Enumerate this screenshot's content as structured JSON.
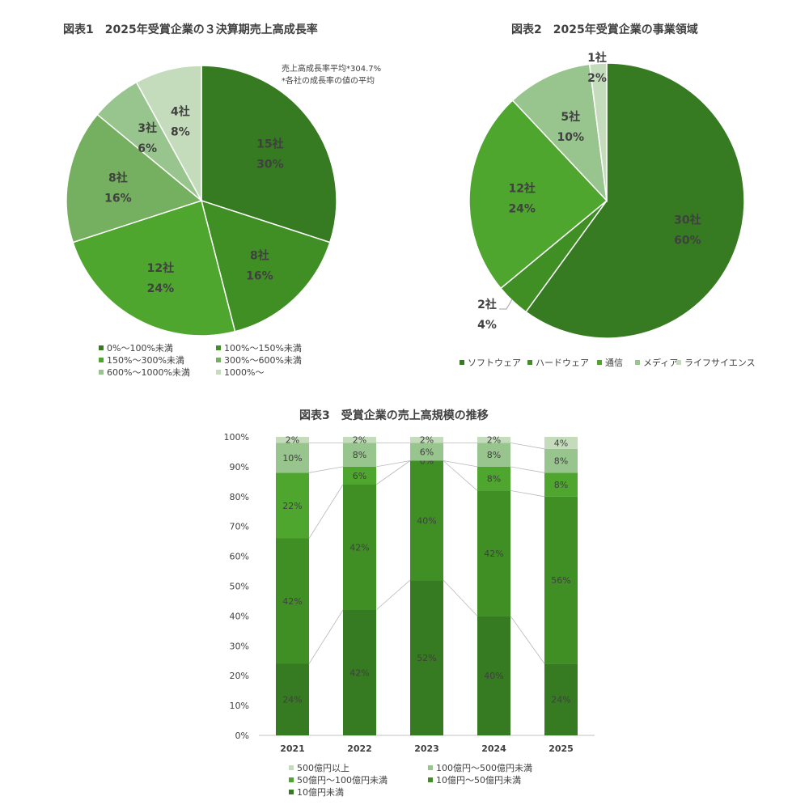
{
  "chart_data": [
    {
      "type": "pie",
      "title": "図表1　2025年受賞企業の３決算期売上高成長率",
      "notes": [
        "売上高成長率平均*304.7%",
        "*各社の成長率の値の平均"
      ],
      "colors": [
        "#367a21",
        "#3f8f25",
        "#4ea62e",
        "#74b05f",
        "#98c48d",
        "#c5dcbc"
      ],
      "slices": [
        {
          "name": "0%～100%未満",
          "count": "15社",
          "pct": "30%",
          "value": 30
        },
        {
          "name": "100%～150%未満",
          "count": "8社",
          "pct": "16%",
          "value": 16
        },
        {
          "name": "150%～300%未満",
          "count": "12社",
          "pct": "24%",
          "value": 24
        },
        {
          "name": "300%～600%未満",
          "count": "8社",
          "pct": "16%",
          "value": 16
        },
        {
          "name": "600%～1000%未満",
          "count": "3社",
          "pct": "6%",
          "value": 6
        },
        {
          "name": "1000%～",
          "count": "4社",
          "pct": "8%",
          "value": 8
        }
      ],
      "legend_position": "bottom"
    },
    {
      "type": "pie",
      "title": "図表2　2025年受賞企業の事業領域",
      "colors": [
        "#367a21",
        "#3f8f25",
        "#4ea62e",
        "#98c48d",
        "#c5dcbc"
      ],
      "slices": [
        {
          "name": "ソフトウェア",
          "count": "30社",
          "pct": "60%",
          "value": 60
        },
        {
          "name": "ハードウェア",
          "count": "2社",
          "pct": "4%",
          "value": 4
        },
        {
          "name": "通信",
          "count": "12社",
          "pct": "24%",
          "value": 24
        },
        {
          "name": "メディア",
          "count": "5社",
          "pct": "10%",
          "value": 10
        },
        {
          "name": "ライフサイエンス",
          "count": "1社",
          "pct": "2%",
          "value": 2
        }
      ],
      "legend_position": "bottom"
    },
    {
      "type": "bar",
      "stacked": true,
      "title": "図表3　受賞企業の売上高規模の推移",
      "categories": [
        "2021",
        "2022",
        "2023",
        "2024",
        "2025"
      ],
      "ylim": [
        0,
        100
      ],
      "yticks": [
        "0%",
        "10%",
        "20%",
        "30%",
        "40%",
        "50%",
        "60%",
        "70%",
        "80%",
        "90%",
        "100%"
      ],
      "series": [
        {
          "name": "10億円未満",
          "color": "#367a21",
          "values": [
            24,
            42,
            52,
            40,
            24
          ]
        },
        {
          "name": "10億円～50億円未満",
          "color": "#3f8f25",
          "values": [
            42,
            42,
            40,
            42,
            56
          ]
        },
        {
          "name": "50億円～100億円未満",
          "color": "#4ea62e",
          "values": [
            22,
            6,
            0,
            8,
            8
          ]
        },
        {
          "name": "100億円～500億円未満",
          "color": "#98c48d",
          "values": [
            10,
            8,
            6,
            8,
            8
          ]
        },
        {
          "name": "500億円以上",
          "color": "#c5dcbc",
          "values": [
            2,
            2,
            2,
            2,
            4
          ]
        }
      ],
      "legend": [
        "500億円以上",
        "100億円～500億円未満",
        "50億円～100億円未満",
        "10億円～50億円未満",
        "10億円未満"
      ],
      "legend_position": "bottom"
    }
  ]
}
